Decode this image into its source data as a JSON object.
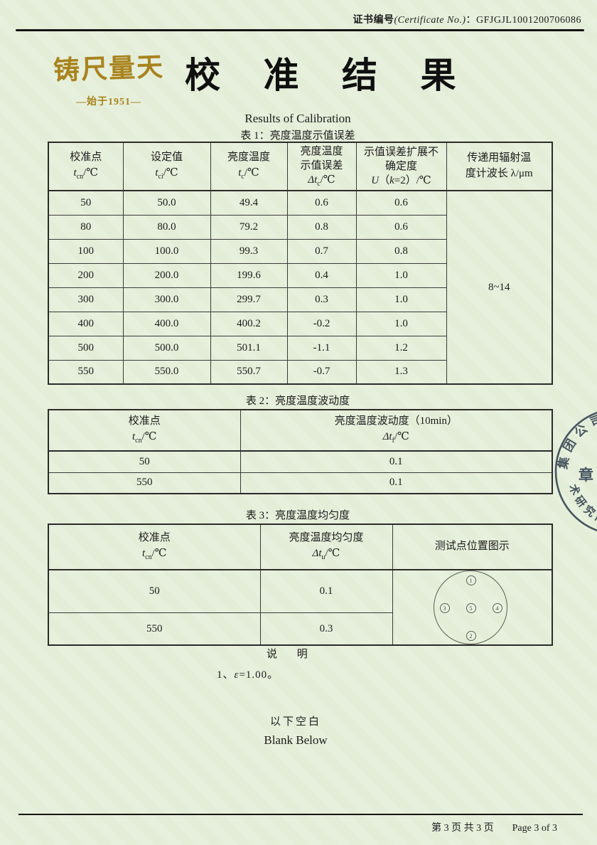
{
  "page": {
    "bg_color": "#e5efda",
    "accent_gold": "#a9831e",
    "stamp_color": "#31404f"
  },
  "header": {
    "cert_label_cn": "证书编号",
    "cert_label_en": "(Certificate No.)",
    "cert_sep": "：",
    "cert_no": "GFJGJL1001200706086"
  },
  "masthead": {
    "logo_text": "铸尺量天",
    "logo_sub": "—始于1951—",
    "title": "校 准 结 果",
    "subtitle": "Results of Calibration"
  },
  "table1": {
    "caption": "表 1：亮度温度示值误差",
    "col1": {
      "l1": "校准点",
      "sym": "t",
      "sub": "cn",
      "unit": "/℃"
    },
    "col2": {
      "l1": "设定值",
      "sym": "t",
      "sub": "ci",
      "unit": "/℃"
    },
    "col3": {
      "l1": "亮度温度",
      "sym": "t",
      "sub": "c",
      "unit": "/℃"
    },
    "col4": {
      "l1": "亮度温度",
      "l2": "示值误差",
      "sym": "Δt",
      "sub": "c",
      "unit": "/℃"
    },
    "col5": {
      "l1": "示值误差扩展不",
      "l2": "确定度",
      "u": "U",
      "k_pre": "（",
      "k": "k",
      "k_post": "=2）/℃"
    },
    "col6": {
      "l1": "传递用辐射温",
      "l2": "度计波长 λ/μm"
    },
    "rows": [
      [
        "50",
        "50.0",
        "49.4",
        "0.6",
        "0.6"
      ],
      [
        "80",
        "80.0",
        "79.2",
        "0.8",
        "0.6"
      ],
      [
        "100",
        "100.0",
        "99.3",
        "0.7",
        "0.8"
      ],
      [
        "200",
        "200.0",
        "199.6",
        "0.4",
        "1.0"
      ],
      [
        "300",
        "300.0",
        "299.7",
        "0.3",
        "1.0"
      ],
      [
        "400",
        "400.0",
        "400.2",
        "-0.2",
        "1.0"
      ],
      [
        "500",
        "500.0",
        "501.1",
        "-1.1",
        "1.2"
      ],
      [
        "550",
        "550.0",
        "550.7",
        "-0.7",
        "1.3"
      ]
    ],
    "wavelength": "8~14"
  },
  "table2": {
    "caption": "表 2：亮度温度波动度",
    "col1": {
      "l1": "校准点",
      "sym": "t",
      "sub": "cn",
      "unit": "/℃"
    },
    "col2": {
      "l1": "亮度温度波动度（10min）",
      "sym": "Δt",
      "sub": "f",
      "unit": "/℃"
    },
    "rows": [
      [
        "50",
        "0.1"
      ],
      [
        "550",
        "0.1"
      ]
    ]
  },
  "table3": {
    "caption": "表 3：亮度温度均匀度",
    "col1": {
      "l1": "校准点",
      "sym": "t",
      "sub": "cn",
      "unit": "/℃"
    },
    "col2": {
      "l1": "亮度温度均匀度",
      "sym": "Δt",
      "sub": "u",
      "unit": "/℃"
    },
    "col3": {
      "l1": "测试点位置图示"
    },
    "rows": [
      [
        "50",
        "0.1"
      ],
      [
        "550",
        "0.3"
      ]
    ],
    "diagram": {
      "points": [
        {
          "pos": "top",
          "label": "1"
        },
        {
          "pos": "left",
          "label": "3"
        },
        {
          "pos": "center",
          "label": "5"
        },
        {
          "pos": "right",
          "label": "4"
        },
        {
          "pos": "bottom",
          "label": "2"
        }
      ]
    }
  },
  "notes": {
    "title": "说 明",
    "item_no": "1、",
    "item_sym": "ε",
    "item_rest": "=1.00。"
  },
  "blank": {
    "cn": "以下空白",
    "en": "Blank Below"
  },
  "stamp": {
    "arc_top": "集团公司",
    "center": "章",
    "arc_bottom": "术研究所"
  },
  "footer": {
    "page_cn": "第 3 页 共 3 页",
    "page_en": "Page 3 of 3"
  }
}
